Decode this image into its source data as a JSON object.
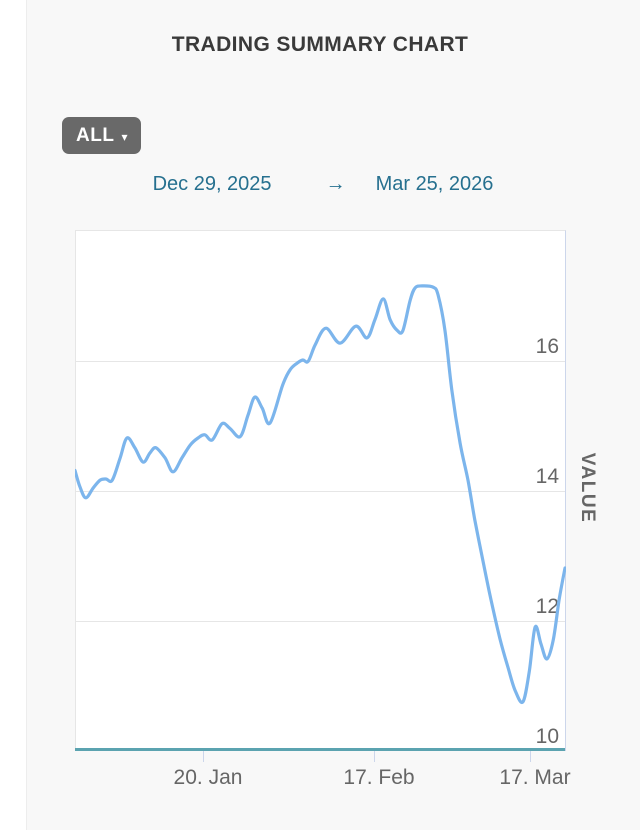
{
  "page": {
    "title": "TRADING SUMMARY CHART",
    "background": "#f8f8f8"
  },
  "controls": {
    "range_button_label": "ALL",
    "range_button_caret": "▾",
    "date_from": "Dec 29, 2025",
    "arrow": "→",
    "date_to": "Mar 25, 2026"
  },
  "chart_data": {
    "type": "line",
    "title": "TRADING SUMMARY CHART",
    "xlabel": "",
    "ylabel": "VALUE",
    "xrange": [
      "2025-12-29",
      "2026-03-25"
    ],
    "ylim": [
      10,
      18
    ],
    "grid": "horizontal",
    "legend": "none",
    "series_name": "VALUE",
    "series_color": "#7cb5ec",
    "axis_baseline_color": "#5ba3b0",
    "gridline_color": "#e6e6e6",
    "right_axis_color": "#ccd6eb",
    "label_color": "#666666",
    "yticks": [
      {
        "value": 16,
        "label": "16",
        "grid": true
      },
      {
        "value": 14,
        "label": "14",
        "grid": true
      },
      {
        "value": 12,
        "label": "12",
        "grid": true
      },
      {
        "value": 10,
        "label": "10",
        "grid": false
      }
    ],
    "xticks": [
      {
        "label": "20. Jan",
        "pos": 0.261
      },
      {
        "label": "17. Feb",
        "pos": 0.61
      },
      {
        "label": "17. Mar",
        "pos": 0.929
      }
    ],
    "points": [
      {
        "d": "2025-12-29",
        "x": 0.0,
        "v": 14.3
      },
      {
        "d": "2025-12-30",
        "x": 0.01,
        "v": 14.05
      },
      {
        "d": "2025-12-31",
        "x": 0.022,
        "v": 13.88
      },
      {
        "d": "2026-01-01",
        "x": 0.037,
        "v": 14.03
      },
      {
        "d": "2026-01-02",
        "x": 0.051,
        "v": 14.15
      },
      {
        "d": "2026-01-03",
        "x": 0.063,
        "v": 14.17
      },
      {
        "d": "2026-01-05",
        "x": 0.076,
        "v": 14.15
      },
      {
        "d": "2026-01-06",
        "x": 0.092,
        "v": 14.49
      },
      {
        "d": "2026-01-07",
        "x": 0.106,
        "v": 14.8
      },
      {
        "d": "2026-01-08",
        "x": 0.122,
        "v": 14.65
      },
      {
        "d": "2026-01-10",
        "x": 0.139,
        "v": 14.43
      },
      {
        "d": "2026-01-11",
        "x": 0.153,
        "v": 14.57
      },
      {
        "d": "2026-01-12",
        "x": 0.165,
        "v": 14.65
      },
      {
        "d": "2026-01-14",
        "x": 0.184,
        "v": 14.49
      },
      {
        "d": "2026-01-15",
        "x": 0.2,
        "v": 14.28
      },
      {
        "d": "2026-01-16",
        "x": 0.218,
        "v": 14.49
      },
      {
        "d": "2026-01-18",
        "x": 0.235,
        "v": 14.69
      },
      {
        "d": "2026-01-19",
        "x": 0.251,
        "v": 14.8
      },
      {
        "d": "2026-01-20",
        "x": 0.265,
        "v": 14.85
      },
      {
        "d": "2026-01-21",
        "x": 0.28,
        "v": 14.77
      },
      {
        "d": "2026-01-23",
        "x": 0.3,
        "v": 15.02
      },
      {
        "d": "2026-01-24",
        "x": 0.316,
        "v": 14.95
      },
      {
        "d": "2026-01-26",
        "x": 0.337,
        "v": 14.82
      },
      {
        "d": "2026-01-27",
        "x": 0.353,
        "v": 15.15
      },
      {
        "d": "2026-01-28",
        "x": 0.367,
        "v": 15.43
      },
      {
        "d": "2026-01-30",
        "x": 0.382,
        "v": 15.26
      },
      {
        "d": "2026-01-31",
        "x": 0.398,
        "v": 15.03
      },
      {
        "d": "2026-02-02",
        "x": 0.424,
        "v": 15.62
      },
      {
        "d": "2026-02-03",
        "x": 0.439,
        "v": 15.85
      },
      {
        "d": "2026-02-04",
        "x": 0.453,
        "v": 15.95
      },
      {
        "d": "2026-02-05",
        "x": 0.465,
        "v": 16.0
      },
      {
        "d": "2026-02-06",
        "x": 0.476,
        "v": 15.98
      },
      {
        "d": "2026-02-07",
        "x": 0.49,
        "v": 16.23
      },
      {
        "d": "2026-02-09",
        "x": 0.512,
        "v": 16.49
      },
      {
        "d": "2026-02-11",
        "x": 0.541,
        "v": 16.26
      },
      {
        "d": "2026-02-14",
        "x": 0.573,
        "v": 16.52
      },
      {
        "d": "2026-02-15",
        "x": 0.596,
        "v": 16.34
      },
      {
        "d": "2026-02-17",
        "x": 0.612,
        "v": 16.62
      },
      {
        "d": "2026-02-18",
        "x": 0.629,
        "v": 16.94
      },
      {
        "d": "2026-02-19",
        "x": 0.643,
        "v": 16.62
      },
      {
        "d": "2026-02-21",
        "x": 0.657,
        "v": 16.46
      },
      {
        "d": "2026-02-22",
        "x": 0.669,
        "v": 16.45
      },
      {
        "d": "2026-02-23",
        "x": 0.684,
        "v": 16.92
      },
      {
        "d": "2026-02-24",
        "x": 0.694,
        "v": 17.11
      },
      {
        "d": "2026-02-25",
        "x": 0.708,
        "v": 17.14
      },
      {
        "d": "2026-02-27",
        "x": 0.731,
        "v": 17.12
      },
      {
        "d": "2026-02-28",
        "x": 0.741,
        "v": 17.0
      },
      {
        "d": "2026-03-01",
        "x": 0.755,
        "v": 16.46
      },
      {
        "d": "2026-03-03",
        "x": 0.769,
        "v": 15.54
      },
      {
        "d": "2026-03-04",
        "x": 0.786,
        "v": 14.72
      },
      {
        "d": "2026-03-05",
        "x": 0.802,
        "v": 14.15
      },
      {
        "d": "2026-03-07",
        "x": 0.816,
        "v": 13.54
      },
      {
        "d": "2026-03-08",
        "x": 0.833,
        "v": 12.89
      },
      {
        "d": "2026-03-10",
        "x": 0.849,
        "v": 12.31
      },
      {
        "d": "2026-03-11",
        "x": 0.867,
        "v": 11.72
      },
      {
        "d": "2026-03-13",
        "x": 0.884,
        "v": 11.26
      },
      {
        "d": "2026-03-14",
        "x": 0.898,
        "v": 10.92
      },
      {
        "d": "2026-03-16",
        "x": 0.914,
        "v": 10.74
      },
      {
        "d": "2026-03-17",
        "x": 0.927,
        "v": 11.2
      },
      {
        "d": "2026-03-18",
        "x": 0.939,
        "v": 11.89
      },
      {
        "d": "2026-03-19",
        "x": 0.951,
        "v": 11.63
      },
      {
        "d": "2026-03-20",
        "x": 0.963,
        "v": 11.4
      },
      {
        "d": "2026-03-22",
        "x": 0.976,
        "v": 11.69
      },
      {
        "d": "2026-03-23",
        "x": 0.988,
        "v": 12.31
      },
      {
        "d": "2026-03-25",
        "x": 1.0,
        "v": 12.8
      }
    ]
  }
}
